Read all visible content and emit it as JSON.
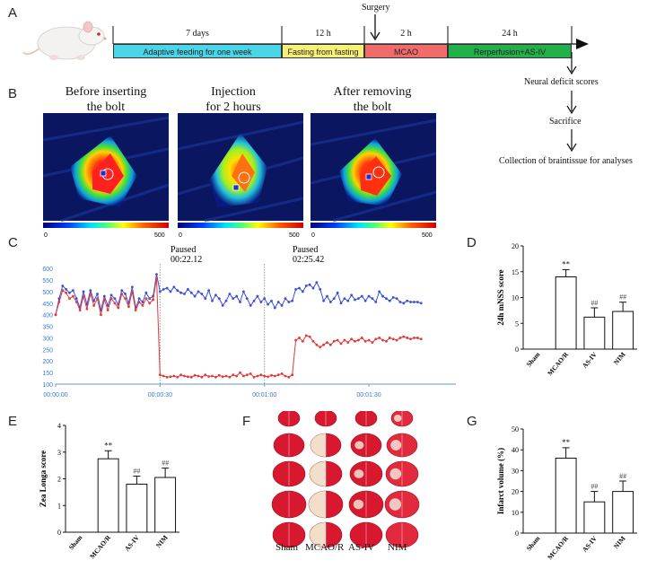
{
  "panel_A": {
    "letter": "A",
    "surgery_label": "Surgery",
    "durations": [
      "7  days",
      "12  h",
      "2  h",
      "24  h"
    ],
    "segments": [
      {
        "label": "Adaptive feeding for one week",
        "color": "#4ad6e6"
      },
      {
        "label": "Fasting from  fasting",
        "color": "#f6f078"
      },
      {
        "label": "MCAO",
        "color": "#f06b6b"
      },
      {
        "label": "Rerperfusion+AS-IV",
        "color": "#22b04a"
      }
    ],
    "flow": [
      "Neural deficit scores",
      "Sacrifice",
      "Collection of braintissue for analyses"
    ]
  },
  "panel_B": {
    "letter": "B",
    "titles": [
      "Before inserting\nthe bolt",
      "Injection\nfor 2 hours",
      "After removing\nthe bolt"
    ],
    "scale_min": "0",
    "scale_max": "500"
  },
  "panel_C": {
    "letter": "C",
    "pause_labels": [
      {
        "line1": "Paused",
        "line2": "00:22.12"
      },
      {
        "line1": "Paused",
        "line2": "02:25.42"
      }
    ],
    "series_colors": {
      "blue": "#3a4fd8",
      "red": "#e03a3a"
    }
  },
  "panel_D": {
    "letter": "D"
  },
  "panel_E": {
    "letter": "E"
  },
  "panel_F": {
    "letter": "F",
    "columns": [
      "Sham",
      "MCAO/R",
      "AS-IV",
      "NIM"
    ]
  },
  "panel_G": {
    "letter": "G"
  },
  "chart_data": [
    {
      "id": "C",
      "type": "line",
      "x_ticks": [
        "00:00:00",
        "00:00:30",
        "00:01:00",
        "00:01:30"
      ],
      "y_ticks": [
        "100",
        "150",
        "200",
        "250",
        "300",
        "350",
        "400",
        "450",
        "500",
        "550",
        "600"
      ],
      "ylim": [
        100,
        620
      ],
      "series": [
        {
          "name": "blue",
          "values": [
            400,
            470,
            525,
            510,
            495,
            505,
            470,
            430,
            500,
            445,
            505,
            460,
            490,
            420,
            480,
            440,
            485,
            470,
            445,
            505,
            490,
            450,
            520,
            430,
            470,
            455,
            495,
            470,
            480,
            575,
            500,
            510,
            515,
            500,
            520,
            505,
            495,
            490,
            510,
            495,
            480,
            500,
            490,
            470,
            505,
            460,
            485,
            470,
            440,
            460,
            490,
            470,
            480,
            455,
            500,
            470,
            440,
            460,
            480,
            455,
            470,
            445,
            460,
            430,
            455,
            440,
            470,
            455,
            460,
            510,
            515,
            500,
            525,
            530,
            515,
            540,
            510,
            460,
            480,
            455,
            470,
            495,
            450,
            470,
            460,
            485,
            465,
            470,
            480,
            460,
            480,
            470,
            455,
            500,
            480,
            470,
            460,
            475,
            470,
            455,
            450,
            460,
            455,
            455,
            455,
            450
          ]
        },
        {
          "name": "red",
          "values": [
            400,
            455,
            505,
            495,
            470,
            480,
            455,
            420,
            480,
            425,
            490,
            440,
            470,
            400,
            465,
            420,
            470,
            450,
            430,
            490,
            470,
            435,
            500,
            420,
            455,
            440,
            470,
            450,
            465,
            560,
            140,
            135,
            130,
            132,
            135,
            130,
            140,
            135,
            132,
            130,
            138,
            135,
            130,
            140,
            133,
            135,
            130,
            138,
            132,
            135,
            130,
            140,
            135,
            150,
            135,
            140,
            145,
            130,
            135,
            140,
            135,
            132,
            138,
            135,
            140,
            145,
            135,
            130,
            140,
            290,
            300,
            285,
            310,
            305,
            285,
            270,
            260,
            270,
            280,
            270,
            285,
            290,
            275,
            290,
            280,
            295,
            285,
            290,
            300,
            285,
            290,
            280,
            295,
            300,
            290,
            285,
            300,
            295,
            290,
            300,
            305,
            300,
            295,
            300,
            300,
            295
          ]
        }
      ]
    },
    {
      "id": "D",
      "type": "bar",
      "categories": [
        "Sham",
        "MCAO/R",
        "AS-IV",
        "NIM"
      ],
      "values": [
        0,
        14,
        6.2,
        7.3
      ],
      "errors": [
        0,
        1.4,
        1.8,
        1.8
      ],
      "annotations": [
        "",
        "**",
        "##",
        "##"
      ],
      "ylabel": "24h mNSS score",
      "ylim": [
        0,
        20
      ],
      "y_ticks": [
        "0",
        "5",
        "10",
        "15",
        "20"
      ]
    },
    {
      "id": "E",
      "type": "bar",
      "categories": [
        "Sham",
        "MCAO/R",
        "AS-IV",
        "NIM"
      ],
      "values": [
        0,
        2.75,
        1.8,
        2.05
      ],
      "errors": [
        0,
        0.3,
        0.3,
        0.35
      ],
      "annotations": [
        "",
        "**",
        "##",
        "##"
      ],
      "ylabel": "Zea Longa score",
      "ylim": [
        0,
        4
      ],
      "y_ticks": [
        "0",
        "1",
        "2",
        "3",
        "4"
      ]
    },
    {
      "id": "G",
      "type": "bar",
      "categories": [
        "Sham",
        "MCAO/R",
        "AS-IV",
        "NIM"
      ],
      "values": [
        0,
        36,
        15,
        20
      ],
      "errors": [
        0,
        5,
        5,
        5
      ],
      "annotations": [
        "",
        "**",
        "##",
        "##"
      ],
      "ylabel": "Infarct volume (%)",
      "ylim": [
        0,
        50
      ],
      "y_ticks": [
        "0",
        "10",
        "20",
        "30",
        "40",
        "50"
      ]
    }
  ]
}
